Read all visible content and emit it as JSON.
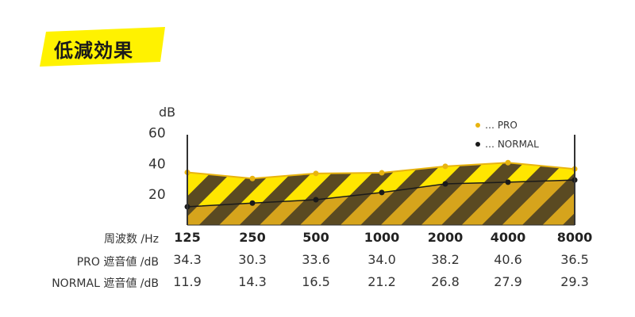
{
  "title": "低減効果",
  "chart_data": {
    "type": "line",
    "ylabel": "dB",
    "yticks": [
      20,
      40,
      60
    ],
    "ylim": [
      0,
      64
    ],
    "categories": [
      "125",
      "250",
      "500",
      "1000",
      "2000",
      "4000",
      "8000"
    ],
    "series": [
      {
        "name": "… PRO",
        "color": "#e8b410",
        "values": [
          34.3,
          30.3,
          33.6,
          34.0,
          38.2,
          40.6,
          36.5
        ]
      },
      {
        "name": "… NORMAL",
        "color": "#1a1a1a",
        "values": [
          11.9,
          14.3,
          16.5,
          21.2,
          26.8,
          27.9,
          29.3
        ]
      }
    ],
    "legend_position": "top-right"
  },
  "table": {
    "freq_label": "周波数 /Hz",
    "pro_label": "PRO 遮音値 /dB",
    "normal_label": "NORMAL 遮音値 /dB",
    "freqs": [
      "125",
      "250",
      "500",
      "1000",
      "2000",
      "4000",
      "8000"
    ],
    "pro": [
      "34.3",
      "30.3",
      "33.6",
      "34.0",
      "38.2",
      "40.6",
      "36.5"
    ],
    "normal": [
      "11.9",
      "14.3",
      "16.5",
      "21.2",
      "26.8",
      "27.9",
      "29.3"
    ]
  },
  "colors": {
    "yellow": "#fff200",
    "stripe_dark": "#5a4a22",
    "pro_fill": "#ffe600",
    "normal_fill": "#d6a41c"
  }
}
